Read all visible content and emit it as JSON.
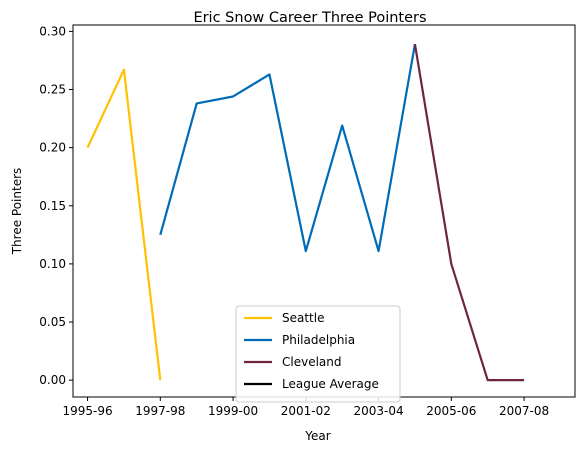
{
  "chart_data": {
    "type": "line",
    "title": "Eric Snow Career Three Pointers",
    "xlabel": "Year",
    "ylabel": "Three Pointers",
    "x_ticks": [
      "1995-96",
      "1997-98",
      "1999-00",
      "2001-02",
      "2003-04",
      "2005-06",
      "2007-08"
    ],
    "y_ticks": [
      "0.00",
      "0.05",
      "0.10",
      "0.15",
      "0.20",
      "0.25",
      "0.30"
    ],
    "xlim": [
      1994.6,
      2008.4
    ],
    "ylim": [
      -0.0145,
      0.3055
    ],
    "legend_position": "lower center",
    "series": [
      {
        "name": "Seattle",
        "color": "#FFC200",
        "points": [
          {
            "x": "1995-96",
            "y": 0.2
          },
          {
            "x": "1996-97",
            "y": 0.267
          },
          {
            "x": "1997-98",
            "y": 0.0
          }
        ]
      },
      {
        "name": "Philadelphia",
        "color": "#006BB6",
        "points": [
          {
            "x": "1997-98",
            "y": 0.125
          },
          {
            "x": "1998-99",
            "y": 0.238
          },
          {
            "x": "1999-00",
            "y": 0.244
          },
          {
            "x": "2000-01",
            "y": 0.263
          },
          {
            "x": "2001-02",
            "y": 0.111
          },
          {
            "x": "2002-03",
            "y": 0.219
          },
          {
            "x": "2003-04",
            "y": 0.111
          },
          {
            "x": "2004-05",
            "y": 0.289
          }
        ]
      },
      {
        "name": "Cleveland",
        "color": "#6F263D",
        "points": [
          {
            "x": "2004-05",
            "y": 0.289
          },
          {
            "x": "2005-06",
            "y": 0.1
          },
          {
            "x": "2006-07",
            "y": 0.0
          },
          {
            "x": "2007-08",
            "y": 0.0
          }
        ]
      },
      {
        "name": "League Average",
        "color": "#000000",
        "points": []
      }
    ]
  }
}
